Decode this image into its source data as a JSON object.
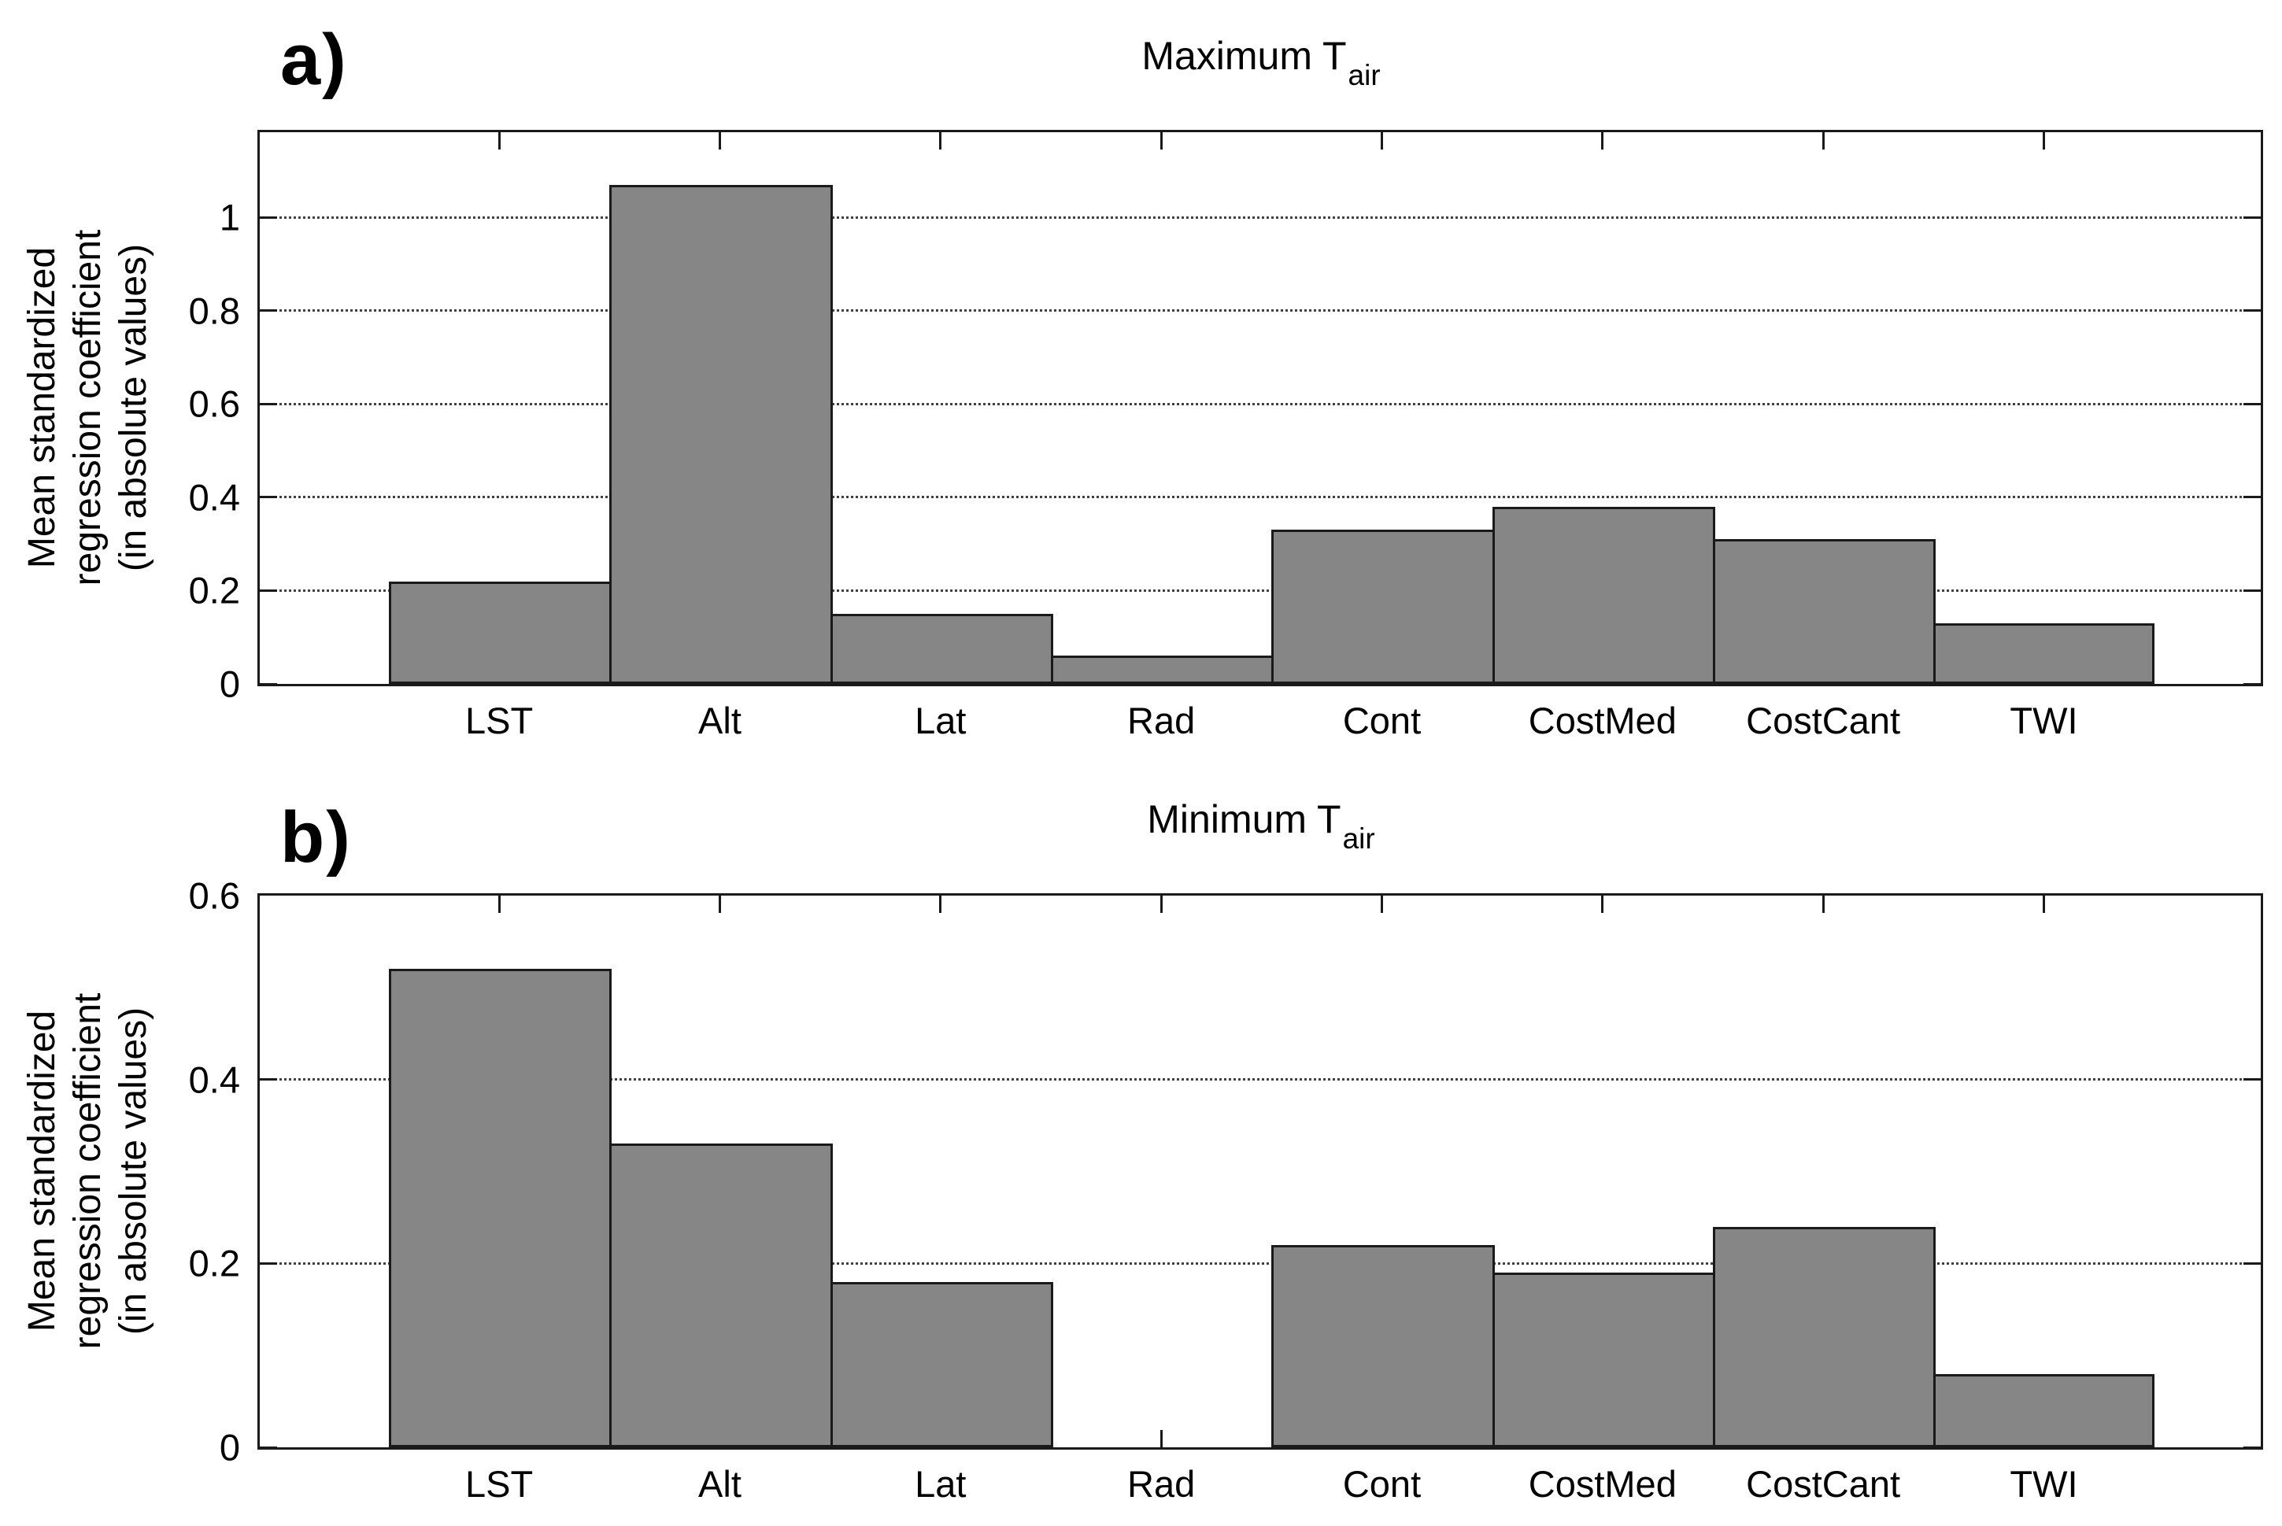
{
  "figure": {
    "background": "#ffffff",
    "colors": {
      "bar_fill": "#868686",
      "bar_edge": "#1a1a1a",
      "axis": "#1a1a1a",
      "grid": "#404040",
      "text": "#000000"
    },
    "ylabel_lines": [
      "Mean standardized",
      "regression coefficient",
      "(in absolute values)"
    ],
    "categories": [
      "LST",
      "Alt",
      "Lat",
      "Rad",
      "Cont",
      "CostMed",
      "CostCant",
      "TWI"
    ],
    "panels": [
      {
        "tag": "a)",
        "title_main": "Maximum T",
        "title_sub": "air"
      },
      {
        "tag": "b)",
        "title_main": "Minimum T",
        "title_sub": "air"
      }
    ]
  },
  "chart_data": [
    {
      "type": "bar",
      "title": "Maximum T_air",
      "panel_label": "a)",
      "categories": [
        "LST",
        "Alt",
        "Lat",
        "Rad",
        "Cont",
        "CostMed",
        "CostCant",
        "TWI"
      ],
      "values": [
        0.22,
        1.07,
        0.15,
        0.06,
        0.33,
        0.38,
        0.31,
        0.13
      ],
      "xlabel": "",
      "ylabel": "Mean standardized regression coefficient (in absolute values)",
      "ylim": [
        0,
        1.183
      ],
      "yticks": [
        0,
        0.2,
        0.4,
        0.6,
        0.8,
        1
      ],
      "ytick_labels": [
        "0",
        "0.2",
        "0.4",
        "0.6",
        "0.8",
        "1"
      ],
      "grid": "horizontal-dotted",
      "legend": "none",
      "bar_color": "#868686"
    },
    {
      "type": "bar",
      "title": "Minimum T_air",
      "panel_label": "b)",
      "categories": [
        "LST",
        "Alt",
        "Lat",
        "Rad",
        "Cont",
        "CostMed",
        "CostCant",
        "TWI"
      ],
      "values": [
        0.52,
        0.33,
        0.18,
        0,
        0.22,
        0.19,
        0.24,
        0.08
      ],
      "xlabel": "",
      "ylabel": "Mean standardized regression coefficient (in absolute values)",
      "ylim": [
        0,
        0.6
      ],
      "yticks": [
        0,
        0.2,
        0.4,
        0.6
      ],
      "ytick_labels": [
        "0",
        "0.2",
        "0.4",
        "0.6"
      ],
      "grid": "horizontal-dotted",
      "legend": "none",
      "bar_color": "#868686"
    }
  ]
}
